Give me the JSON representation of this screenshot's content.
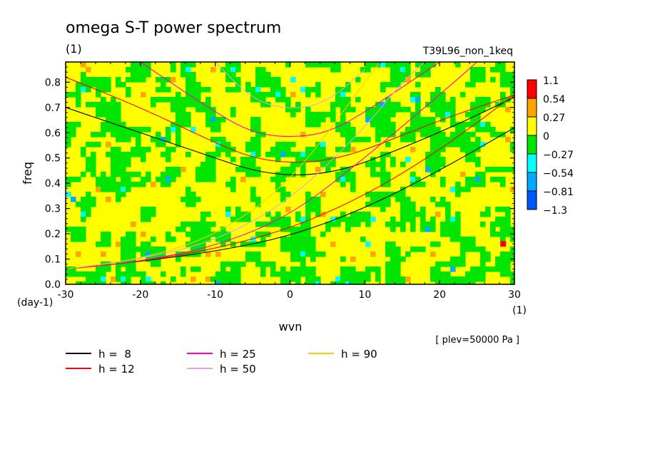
{
  "chart_data": {
    "type": "heatmap",
    "title": "omega S-T power spectrum",
    "units_label": "(1)",
    "run_label": "T39L96_non_1keq",
    "xlabel": "wvn",
    "xunits": "(1)",
    "ylabel": "freq",
    "yunits": "(day-1)",
    "footnote": "[ plev=50000 Pa ]",
    "xlim": [
      -30,
      30
    ],
    "ylim": [
      0,
      0.88
    ],
    "xticks": [
      -30,
      -20,
      -10,
      0,
      10,
      20,
      30
    ],
    "yticks": [
      0.0,
      0.1,
      0.2,
      0.3,
      0.4,
      0.5,
      0.6,
      0.7,
      0.8
    ],
    "color_levels": [
      {
        "label": "1.1",
        "color": "#ff0000"
      },
      {
        "label": "0.54",
        "color": "#ffa500"
      },
      {
        "label": "0.27",
        "color": "#ffff00"
      },
      {
        "label": "0",
        "color": "#00e600"
      },
      {
        "label": "−0.27",
        "color": "#00ffff"
      },
      {
        "label": "−0.54",
        "color": "#00aaff"
      },
      {
        "label": "−0.81",
        "color": "#0055ff"
      },
      {
        "label": "−1.3",
        "color": ""
      }
    ],
    "dispersion_legend": [
      {
        "label": "h =  8",
        "color": "#000000"
      },
      {
        "label": "h = 12",
        "color": "#ff0000"
      },
      {
        "label": "h = 25",
        "color": "#ff00c8"
      },
      {
        "label": "h = 50",
        "color": "#e6a0e6"
      },
      {
        "label": "h = 90",
        "color": "#ffc800"
      }
    ],
    "curves": [
      {
        "name": "h =  8",
        "color": "#000000",
        "type": "rossby_min",
        "points": [
          [
            -30,
            0.7
          ],
          [
            -20,
            0.6
          ],
          [
            -10,
            0.5
          ],
          [
            -5,
            0.45
          ],
          [
            0,
            0.43
          ],
          [
            5,
            0.44
          ],
          [
            10,
            0.48
          ],
          [
            20,
            0.6
          ],
          [
            30,
            0.74
          ]
        ]
      },
      {
        "name": "h = 12",
        "color": "#ff0000",
        "type": "rossby_min",
        "points": [
          [
            -30,
            0.82
          ],
          [
            -20,
            0.7
          ],
          [
            -10,
            0.56
          ],
          [
            -5,
            0.5
          ],
          [
            0,
            0.48
          ],
          [
            5,
            0.49
          ],
          [
            10,
            0.53
          ],
          [
            20,
            0.65
          ],
          [
            30,
            0.75
          ]
        ]
      },
      {
        "name": "h = 25",
        "color": "#ff00c8",
        "type": "rossby_min",
        "points": [
          [
            -20,
            0.88
          ],
          [
            -10,
            0.68
          ],
          [
            -5,
            0.6
          ],
          [
            0,
            0.58
          ],
          [
            5,
            0.6
          ],
          [
            10,
            0.68
          ],
          [
            20,
            0.88
          ]
        ]
      },
      {
        "name": "h = 50",
        "color": "#e6a0e6",
        "type": "rossby_min",
        "points": [
          [
            -10,
            0.88
          ],
          [
            -5,
            0.73
          ],
          [
            0,
            0.69
          ],
          [
            5,
            0.72
          ],
          [
            10,
            0.85
          ]
        ]
      },
      {
        "name": "h =  8",
        "color": "#000000",
        "type": "kelvin",
        "points": [
          [
            -30,
            0.06
          ],
          [
            -20,
            0.09
          ],
          [
            -10,
            0.13
          ],
          [
            0,
            0.19
          ],
          [
            10,
            0.3
          ],
          [
            20,
            0.45
          ],
          [
            30,
            0.62
          ]
        ]
      },
      {
        "name": "h = 12",
        "color": "#ff0000",
        "type": "kelvin",
        "points": [
          [
            -30,
            0.06
          ],
          [
            -20,
            0.09
          ],
          [
            -10,
            0.14
          ],
          [
            0,
            0.22
          ],
          [
            10,
            0.35
          ],
          [
            20,
            0.53
          ],
          [
            30,
            0.75
          ]
        ]
      },
      {
        "name": "h = 25",
        "color": "#ff00c8",
        "type": "kelvin",
        "points": [
          [
            -30,
            0.06
          ],
          [
            -20,
            0.09
          ],
          [
            -10,
            0.15
          ],
          [
            0,
            0.27
          ],
          [
            10,
            0.5
          ],
          [
            20,
            0.75
          ],
          [
            25,
            0.88
          ]
        ]
      },
      {
        "name": "h = 50",
        "color": "#e6a0e6",
        "type": "kelvin",
        "points": [
          [
            -30,
            0.06
          ],
          [
            -20,
            0.1
          ],
          [
            -10,
            0.17
          ],
          [
            0,
            0.33
          ],
          [
            10,
            0.62
          ],
          [
            15,
            0.8
          ],
          [
            18,
            0.88
          ]
        ]
      },
      {
        "name": "h = 90",
        "color": "#ffc800",
        "type": "kelvin",
        "points": [
          [
            -30,
            0.06
          ],
          [
            -20,
            0.1
          ],
          [
            -10,
            0.19
          ],
          [
            0,
            0.4
          ],
          [
            10,
            0.8
          ],
          [
            12,
            0.88
          ]
        ]
      }
    ]
  }
}
